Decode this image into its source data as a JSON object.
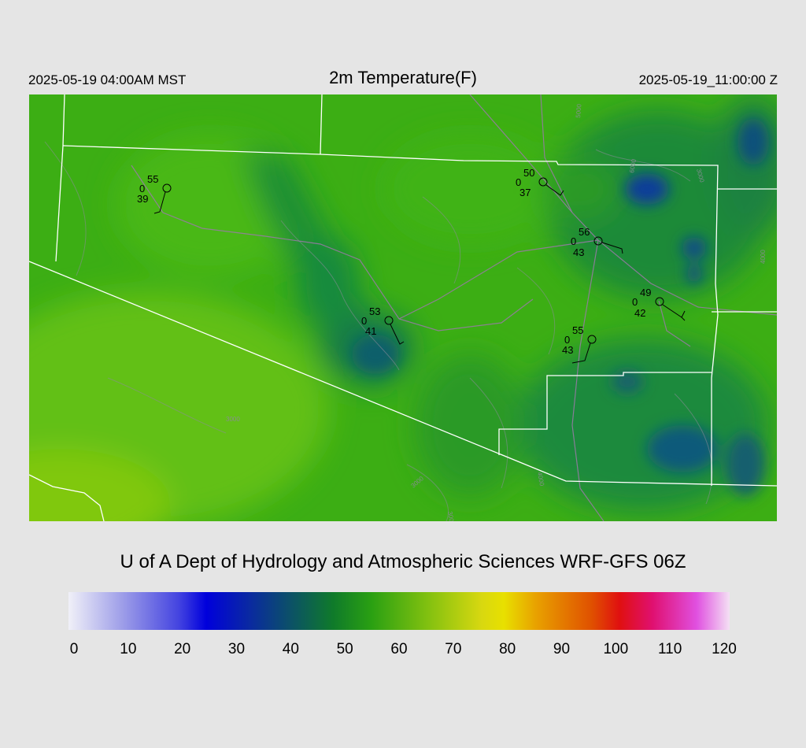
{
  "header": {
    "local_time": "2025-05-19 04:00AM MST",
    "title": "2m Temperature(F)",
    "utc_time": "2025-05-19_11:00:00 Z"
  },
  "credit": "U of A Dept of Hydrology and Atmospheric Sciences WRF-GFS 06Z",
  "colorbar": {
    "ticks": [
      "0",
      "10",
      "20",
      "30",
      "40",
      "50",
      "60",
      "70",
      "80",
      "90",
      "100",
      "110",
      "120"
    ],
    "stops": [
      {
        "v": 0,
        "c": "#f0f0f8"
      },
      {
        "v": 10,
        "c": "#9c9ce8"
      },
      {
        "v": 20,
        "c": "#4444e0"
      },
      {
        "v": 25,
        "c": "#0000dc"
      },
      {
        "v": 33,
        "c": "#0a2aa0"
      },
      {
        "v": 42,
        "c": "#0c5a5a"
      },
      {
        "v": 48,
        "c": "#0f7a2a"
      },
      {
        "v": 55,
        "c": "#2aa012"
      },
      {
        "v": 65,
        "c": "#80c010"
      },
      {
        "v": 75,
        "c": "#d8d810"
      },
      {
        "v": 79,
        "c": "#e8e000"
      },
      {
        "v": 85,
        "c": "#e8a000"
      },
      {
        "v": 95,
        "c": "#e05000"
      },
      {
        "v": 100,
        "c": "#e01010"
      },
      {
        "v": 106,
        "c": "#e01070"
      },
      {
        "v": 114,
        "c": "#e050e0"
      },
      {
        "v": 120,
        "c": "#f4e0f4"
      }
    ]
  },
  "stations": [
    {
      "t": "55",
      "w": "0",
      "d": "39"
    },
    {
      "t": "50",
      "w": "0",
      "d": "37"
    },
    {
      "t": "56",
      "w": "0",
      "d": "43"
    },
    {
      "t": "53",
      "w": "0",
      "d": "41"
    },
    {
      "t": "49",
      "w": "0",
      "d": "42"
    },
    {
      "t": "55",
      "w": "0",
      "d": "43"
    }
  ],
  "contour_labels": [
    "3000",
    "4000",
    "5000",
    "6000"
  ]
}
